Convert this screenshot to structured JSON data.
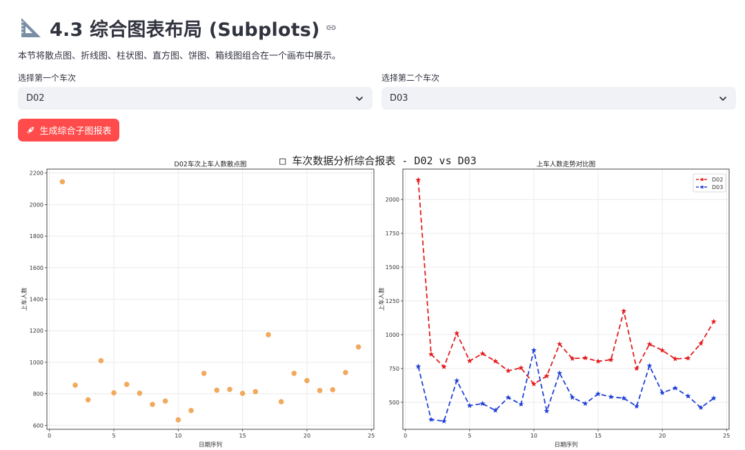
{
  "header": {
    "title": "4.3 综合图表布局 (Subplots)",
    "title_icon": "triangle-ruler-icon",
    "link_icon": "link-icon"
  },
  "description": "本节将散点图、折线图、柱状图、直方图、饼图、箱线图组合在一个画布中展示。",
  "selectors": {
    "first": {
      "label": "选择第一个车次",
      "value": "D02"
    },
    "second": {
      "label": "选择第二个车次",
      "value": "D03"
    }
  },
  "generate_button": {
    "label": "生成综合子图报表",
    "icon": "rocket-icon"
  },
  "figure": {
    "suptitle": "□  车次数据分析综合报表 - D02 vs D03"
  },
  "colors": {
    "accent": "#ff4b4b",
    "scatter": "#f0a04b",
    "d02": "#e31a1c",
    "d03": "#1f3fd6"
  },
  "chart_data": [
    {
      "type": "scatter",
      "title": "D02车次上车人数散点图",
      "xlabel": "日期序列",
      "ylabel": "上车人数",
      "xlim": [
        -0.2,
        25.2
      ],
      "ylim": [
        575,
        2225
      ],
      "xticks": [
        0,
        5,
        10,
        15,
        20,
        25
      ],
      "yticks": [
        600,
        800,
        1000,
        1200,
        1400,
        1600,
        1800,
        2000,
        2200
      ],
      "grid": true,
      "x": [
        1,
        2,
        3,
        4,
        5,
        6,
        7,
        8,
        9,
        10,
        11,
        12,
        13,
        14,
        15,
        16,
        17,
        18,
        19,
        20,
        21,
        22,
        23,
        24
      ],
      "y": [
        2145,
        855,
        762,
        1010,
        806,
        860,
        804,
        733,
        754,
        635,
        694,
        930,
        823,
        828,
        803,
        814,
        1175,
        750,
        930,
        884,
        821,
        826,
        935,
        1097
      ]
    },
    {
      "type": "line",
      "title": "上车人数走势对比图",
      "xlabel": "日期序列",
      "ylabel": "上车人数",
      "xlim": [
        -0.2,
        25.2
      ],
      "ylim": [
        300,
        2225
      ],
      "xticks": [
        0,
        5,
        10,
        15,
        20,
        25
      ],
      "yticks": [
        500,
        750,
        1000,
        1250,
        1500,
        1750,
        2000
      ],
      "grid": true,
      "legend": "top-right",
      "x": [
        1,
        2,
        3,
        4,
        5,
        6,
        7,
        8,
        9,
        10,
        11,
        12,
        13,
        14,
        15,
        16,
        17,
        18,
        19,
        20,
        21,
        22,
        23,
        24
      ],
      "series": [
        {
          "name": "D02",
          "values": [
            2145,
            855,
            762,
            1010,
            806,
            860,
            804,
            733,
            754,
            635,
            694,
            930,
            823,
            828,
            803,
            814,
            1175,
            750,
            930,
            884,
            821,
            826,
            935,
            1097
          ]
        },
        {
          "name": "D03",
          "values": [
            765,
            372,
            360,
            660,
            475,
            490,
            440,
            535,
            485,
            885,
            435,
            715,
            535,
            490,
            562,
            540,
            530,
            470,
            770,
            570,
            605,
            545,
            460,
            530
          ]
        }
      ]
    }
  ]
}
